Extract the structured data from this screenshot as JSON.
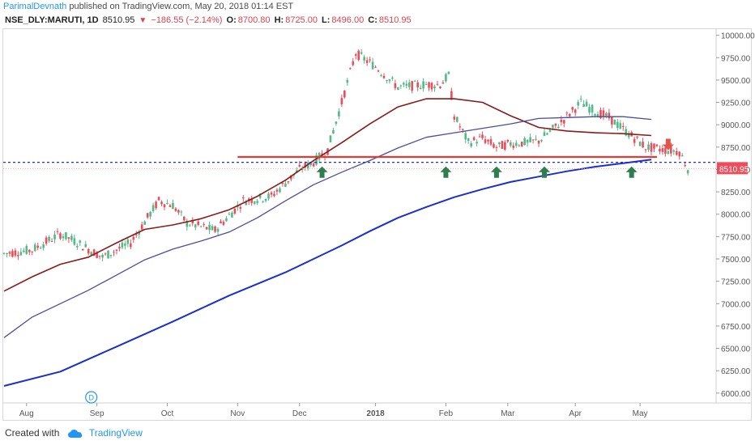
{
  "header": {
    "author": "ParimalDevnath",
    "published_text": "published on TradingView.com, May 20, 2018 01:14 EST"
  },
  "symbol": {
    "ticker": "NSE_DLY:MARUTI, 1D",
    "last": "8510.95",
    "change": "−186.55 (−2.14%)",
    "open_label": "O:",
    "open": "8700.80",
    "high_label": "H:",
    "high": "8725.00",
    "low_label": "L:",
    "low": "8496.00",
    "close_label": "C:",
    "close": "8510.95"
  },
  "footer": {
    "created_with": "Created with",
    "brand": "TradingView"
  },
  "colors": {
    "up": "#53b987",
    "down": "#eb4d5c",
    "ma_short": "#8b1a1a",
    "ma_mid": "#4a4e9e",
    "ma_long": "#1a2fd0",
    "support_line": "#e53935",
    "dotted_blue": "#1a2fd0",
    "arrow_up": "#2e7d4f",
    "arrow_down": "#e0564c",
    "price_tag": "#eb4d5c"
  },
  "chart_data": {
    "type": "candlestick",
    "y_ticks": [
      6000,
      6250,
      6500,
      6750,
      7000,
      7250,
      7500,
      7750,
      8000,
      8250,
      8500,
      8750,
      9000,
      9250,
      9500,
      9750,
      10000
    ],
    "y_tick_labels": [
      "6000.00",
      "6250.00",
      "6500.00",
      "6750.00",
      "7000.00",
      "7250.00",
      "7500.00",
      "7750.00",
      "8000.00",
      "8250.00",
      "8500.00",
      "8750.00",
      "9000.00",
      "9250.00",
      "9500.00",
      "9750.00",
      "10000.00"
    ],
    "ylim": [
      5890,
      10060
    ],
    "x_labels": [
      "Aug",
      "Sep",
      "Oct",
      "Nov",
      "Dec",
      "2018",
      "Feb",
      "Mar",
      "Apr",
      "May"
    ],
    "x_label_positions": [
      8,
      33,
      58,
      83,
      105,
      132,
      157,
      179,
      203,
      226
    ],
    "n_bars": 250,
    "last_price_label": "8510.95",
    "dividend_marker": "D",
    "dividend_bar": 31,
    "ma_short": [
      [
        0,
        7140
      ],
      [
        10,
        7300
      ],
      [
        20,
        7440
      ],
      [
        30,
        7520
      ],
      [
        40,
        7680
      ],
      [
        50,
        7830
      ],
      [
        60,
        7880
      ],
      [
        70,
        7950
      ],
      [
        80,
        8050
      ],
      [
        90,
        8200
      ],
      [
        100,
        8380
      ],
      [
        110,
        8600
      ],
      [
        120,
        8800
      ],
      [
        130,
        9010
      ],
      [
        140,
        9200
      ],
      [
        150,
        9290
      ],
      [
        160,
        9290
      ],
      [
        170,
        9250
      ],
      [
        180,
        9100
      ],
      [
        190,
        8970
      ],
      [
        200,
        8930
      ],
      [
        210,
        8910
      ],
      [
        220,
        8900
      ],
      [
        230,
        8880
      ]
    ],
    "ma_mid": [
      [
        0,
        6620
      ],
      [
        10,
        6850
      ],
      [
        20,
        7000
      ],
      [
        30,
        7150
      ],
      [
        40,
        7320
      ],
      [
        50,
        7490
      ],
      [
        60,
        7610
      ],
      [
        70,
        7700
      ],
      [
        80,
        7800
      ],
      [
        90,
        7960
      ],
      [
        100,
        8150
      ],
      [
        110,
        8330
      ],
      [
        120,
        8470
      ],
      [
        130,
        8600
      ],
      [
        140,
        8740
      ],
      [
        150,
        8860
      ],
      [
        160,
        8910
      ],
      [
        170,
        8960
      ],
      [
        180,
        9010
      ],
      [
        190,
        9070
      ],
      [
        200,
        9080
      ],
      [
        210,
        9090
      ],
      [
        220,
        9090
      ],
      [
        230,
        9060
      ]
    ],
    "ma_long": [
      [
        0,
        6080
      ],
      [
        20,
        6240
      ],
      [
        40,
        6520
      ],
      [
        60,
        6800
      ],
      [
        80,
        7090
      ],
      [
        100,
        7350
      ],
      [
        120,
        7650
      ],
      [
        130,
        7810
      ],
      [
        140,
        7960
      ],
      [
        150,
        8080
      ],
      [
        160,
        8190
      ],
      [
        170,
        8280
      ],
      [
        180,
        8360
      ],
      [
        190,
        8420
      ],
      [
        200,
        8480
      ],
      [
        210,
        8530
      ],
      [
        220,
        8570
      ],
      [
        230,
        8610
      ]
    ],
    "support_line": {
      "x_start": 83,
      "x_end": 232,
      "y": 8640
    },
    "dotted_line": 8580,
    "up_arrows_at": [
      [
        113,
        8470
      ],
      [
        157,
        8470
      ],
      [
        175,
        8470
      ],
      [
        192,
        8470
      ],
      [
        223,
        8470
      ]
    ],
    "down_arrow_at": [
      236,
      8780
    ]
  }
}
